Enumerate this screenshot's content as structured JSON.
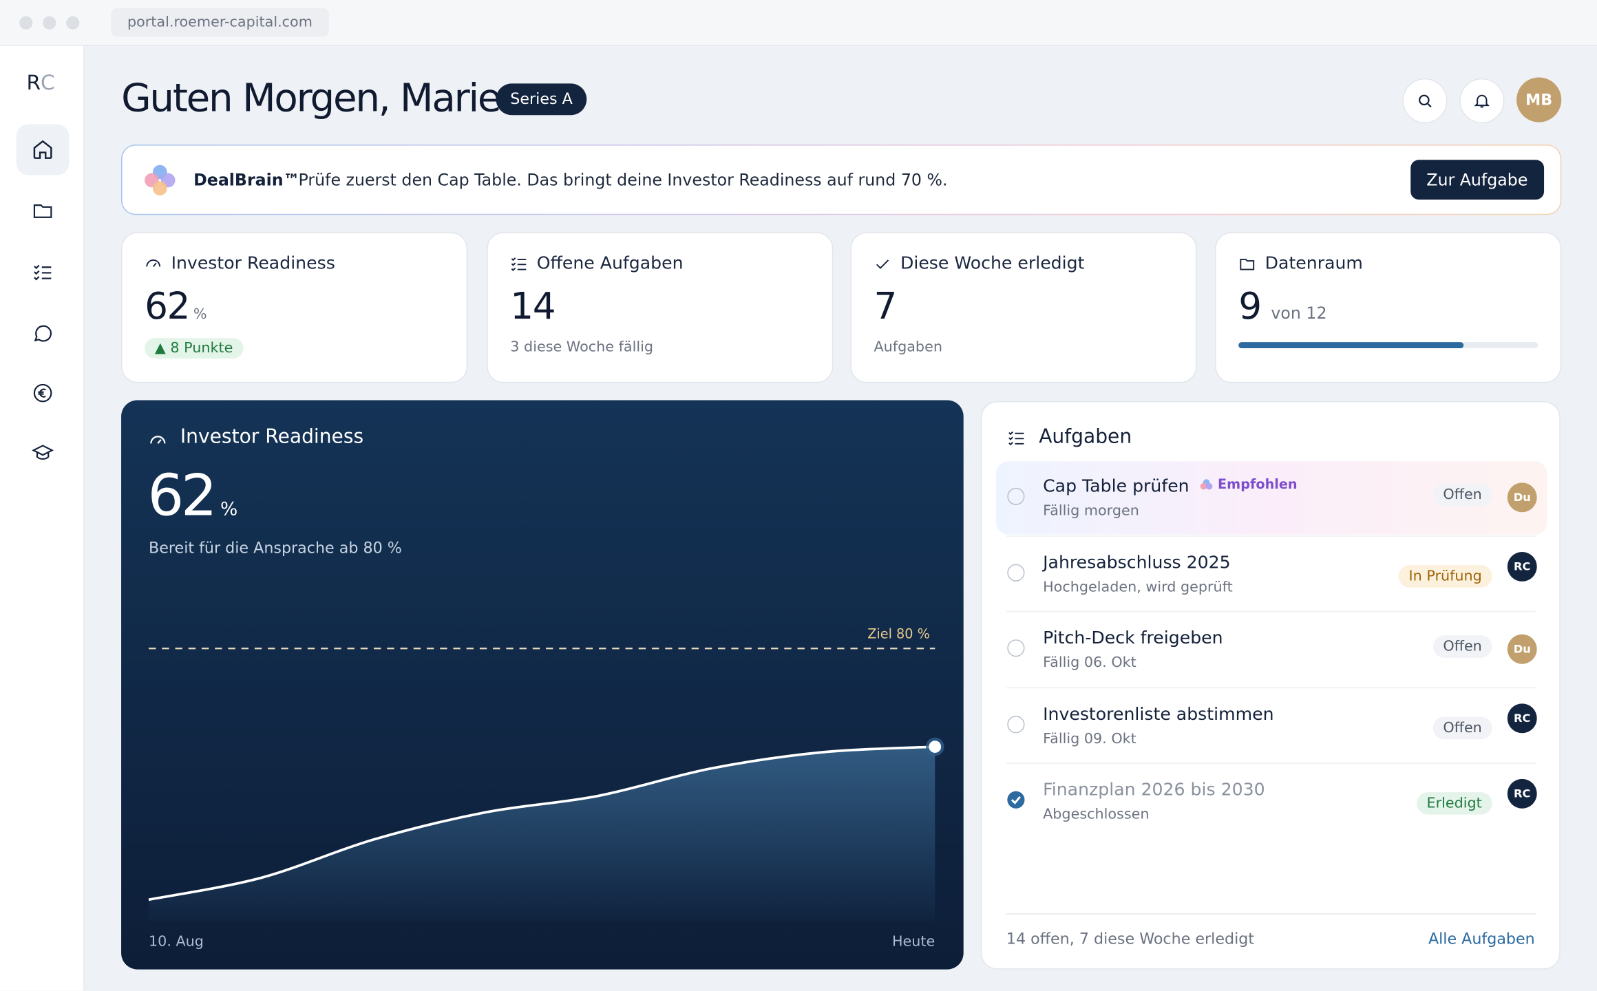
{
  "browser": {
    "url": "portal.roemer-capital.com"
  },
  "sidebar": {
    "logo_r": "R",
    "logo_c": "C"
  },
  "header": {
    "greeting": "Guten Morgen, Marie.",
    "badge": "Series A",
    "avatar": "MB"
  },
  "banner": {
    "brand": "DealBrain™",
    "text": "Prüfe zuerst den Cap Table. Das bringt deine Investor Readiness auf rund 70 %.",
    "button": "Zur Aufgabe"
  },
  "kpis": [
    {
      "title": "Investor Readiness",
      "value": "62",
      "unit": "%",
      "delta": "▲ 8 Punkte"
    },
    {
      "title": "Offene Aufgaben",
      "value": "14",
      "sub": "3 diese Woche fällig"
    },
    {
      "title": "Diese Woche erledigt",
      "value": "7",
      "sub": "Aufgaben"
    },
    {
      "title": "Datenraum",
      "value": "9",
      "unit": "von 12",
      "progress": 75
    }
  ],
  "chart_data": {
    "type": "line",
    "title": "Investor Readiness",
    "value": "62",
    "unit": "%",
    "subtitle": "Bereit für die Ansprache ab 80 %",
    "categories": [
      "10. Aug",
      null,
      null,
      null,
      null,
      null,
      null,
      "Heute"
    ],
    "values": [
      34,
      38,
      45,
      50,
      53,
      58,
      61,
      62
    ],
    "ylim": [
      30,
      85
    ],
    "goal": 80,
    "goal_label": "Ziel 80 %",
    "color": "#ffffff"
  },
  "tasks": {
    "title": "Aufgaben",
    "items": [
      {
        "title": "Cap Table prüfen",
        "tag": "Empfohlen",
        "due": "Fällig morgen",
        "status": "Offen",
        "assignee": "Du",
        "done": false
      },
      {
        "title": "Jahresabschluss 2025",
        "due": "Hochgeladen, wird geprüft",
        "status": "In Prüfung",
        "assignee": "RC",
        "done": false
      },
      {
        "title": "Pitch-Deck freigeben",
        "due": "Fällig 06. Okt",
        "status": "Offen",
        "assignee": "Du",
        "done": false
      },
      {
        "title": "Investorenliste abstimmen",
        "due": "Fällig 09. Okt",
        "status": "Offen",
        "assignee": "RC",
        "done": false
      },
      {
        "title": "Finanzplan 2026 bis 2030",
        "due": "Abgeschlossen",
        "status": "Erledigt",
        "assignee": "RC",
        "done": true
      }
    ],
    "footer": "14 offen, 7 diese Woche erledigt",
    "link": "Alle Aufgaben"
  }
}
